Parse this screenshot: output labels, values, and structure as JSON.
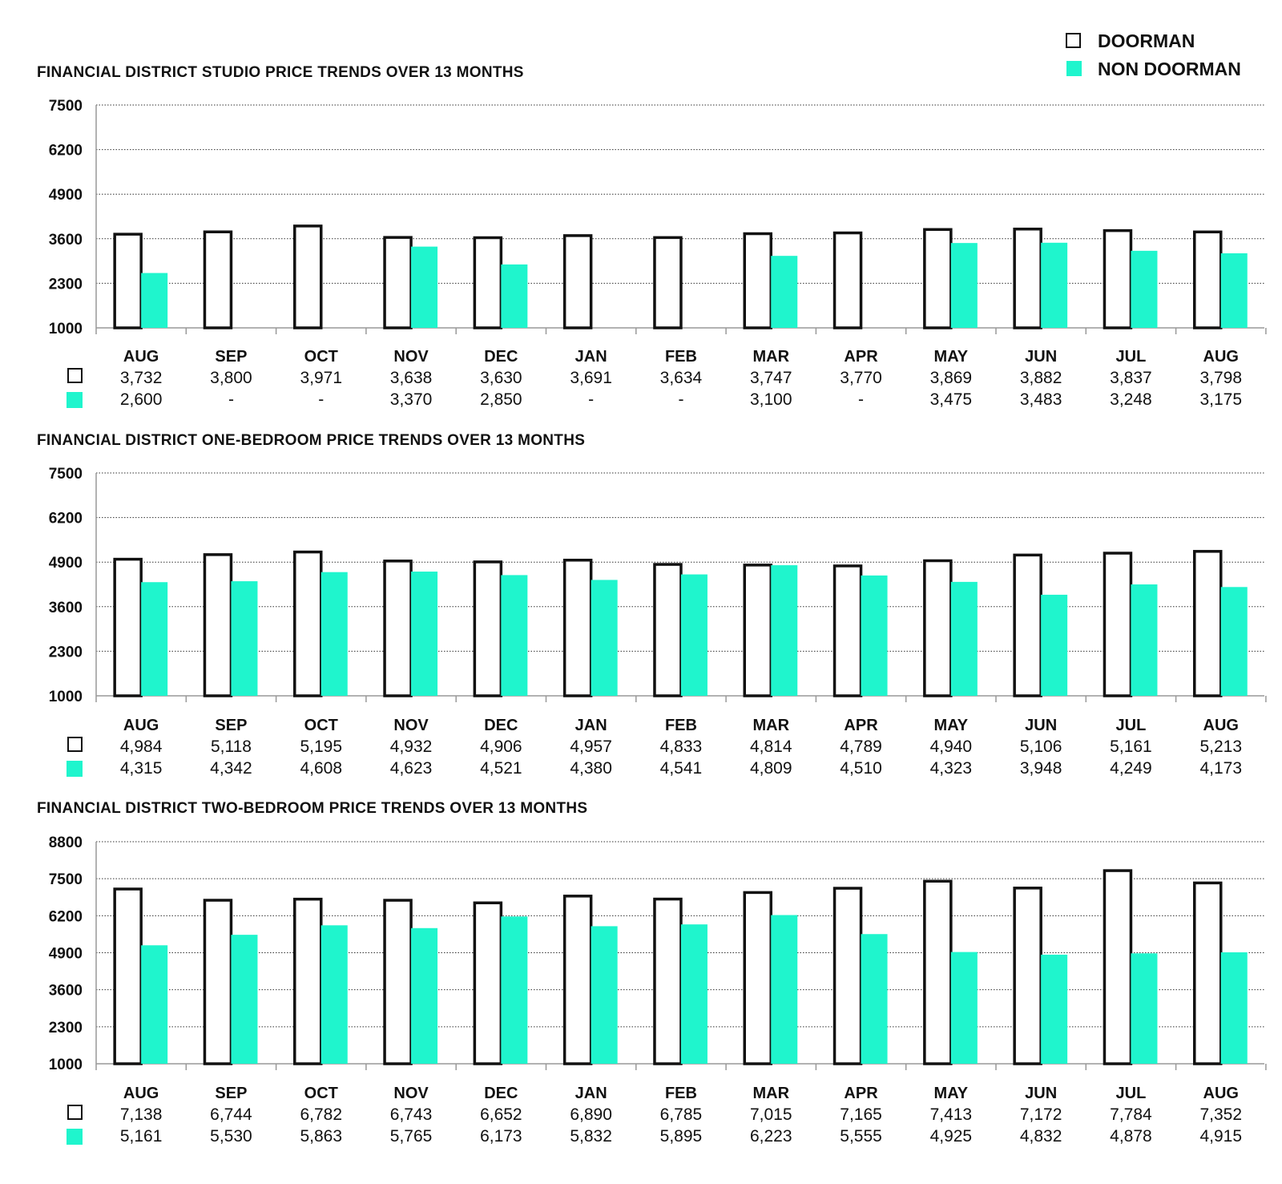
{
  "legend": {
    "items": [
      {
        "label": "DOORMAN",
        "swatch": "outline",
        "color": "#111111"
      },
      {
        "label": "NON DOORMAN",
        "swatch": "filled",
        "color": "#1ff5cd"
      }
    ]
  },
  "colors": {
    "doorman_stroke": "#111111",
    "non_doorman_fill": "#1ff5cd"
  },
  "chart_data": [
    {
      "type": "bar",
      "title": "FINANCIAL DISTRICT STUDIO PRICE TRENDS OVER 13 MONTHS",
      "categories": [
        "AUG",
        "SEP",
        "OCT",
        "NOV",
        "DEC",
        "JAN",
        "FEB",
        "MAR",
        "APR",
        "MAY",
        "JUN",
        "JUL",
        "AUG"
      ],
      "yticks": [
        1000,
        2300,
        3600,
        4900,
        6200,
        7500
      ],
      "ylim": [
        1000,
        7500
      ],
      "series": [
        {
          "name": "DOORMAN",
          "values": [
            3732,
            3800,
            3971,
            3638,
            3630,
            3691,
            3634,
            3747,
            3770,
            3869,
            3882,
            3837,
            3798
          ],
          "labels": [
            "3,732",
            "3,800",
            "3,971",
            "3,638",
            "3,630",
            "3,691",
            "3,634",
            "3,747",
            "3,770",
            "3,869",
            "3,882",
            "3,837",
            "3,798"
          ]
        },
        {
          "name": "NON DOORMAN",
          "values": [
            2600,
            null,
            null,
            3370,
            2850,
            null,
            null,
            3100,
            null,
            3475,
            3483,
            3248,
            3175
          ],
          "labels": [
            "2,600",
            "-",
            "-",
            "3,370",
            "2,850",
            "-",
            "-",
            "3,100",
            "-",
            "3,475",
            "3,483",
            "3,248",
            "3,175"
          ]
        }
      ]
    },
    {
      "type": "bar",
      "title": "FINANCIAL DISTRICT ONE-BEDROOM PRICE TRENDS OVER 13 MONTHS",
      "categories": [
        "AUG",
        "SEP",
        "OCT",
        "NOV",
        "DEC",
        "JAN",
        "FEB",
        "MAR",
        "APR",
        "MAY",
        "JUN",
        "JUL",
        "AUG"
      ],
      "yticks": [
        1000,
        2300,
        3600,
        4900,
        6200,
        7500
      ],
      "ylim": [
        1000,
        7500
      ],
      "series": [
        {
          "name": "DOORMAN",
          "values": [
            4984,
            5118,
            5195,
            4932,
            4906,
            4957,
            4833,
            4814,
            4789,
            4940,
            5106,
            5161,
            5213
          ],
          "labels": [
            "4,984",
            "5,118",
            "5,195",
            "4,932",
            "4,906",
            "4,957",
            "4,833",
            "4,814",
            "4,789",
            "4,940",
            "5,106",
            "5,161",
            "5,213"
          ]
        },
        {
          "name": "NON DOORMAN",
          "values": [
            4315,
            4342,
            4608,
            4623,
            4521,
            4380,
            4541,
            4809,
            4510,
            4323,
            3948,
            4249,
            4173
          ],
          "labels": [
            "4,315",
            "4,342",
            "4,608",
            "4,623",
            "4,521",
            "4,380",
            "4,541",
            "4,809",
            "4,510",
            "4,323",
            "3,948",
            "4,249",
            "4,173"
          ]
        }
      ]
    },
    {
      "type": "bar",
      "title": "FINANCIAL DISTRICT TWO-BEDROOM PRICE TRENDS OVER 13 MONTHS",
      "categories": [
        "AUG",
        "SEP",
        "OCT",
        "NOV",
        "DEC",
        "JAN",
        "FEB",
        "MAR",
        "APR",
        "MAY",
        "JUN",
        "JUL",
        "AUG"
      ],
      "yticks": [
        1000,
        2300,
        3600,
        4900,
        6200,
        7500,
        8800
      ],
      "ylim": [
        1000,
        8800
      ],
      "series": [
        {
          "name": "DOORMAN",
          "values": [
            7138,
            6744,
            6782,
            6743,
            6652,
            6890,
            6785,
            7015,
            7165,
            7413,
            7172,
            7784,
            7352
          ],
          "labels": [
            "7,138",
            "6,744",
            "6,782",
            "6,743",
            "6,652",
            "6,890",
            "6,785",
            "7,015",
            "7,165",
            "7,413",
            "7,172",
            "7,784",
            "7,352"
          ]
        },
        {
          "name": "NON DOORMAN",
          "values": [
            5161,
            5530,
            5863,
            5765,
            6173,
            5832,
            5895,
            6223,
            5555,
            4925,
            4832,
            4878,
            4915
          ],
          "labels": [
            "5,161",
            "5,530",
            "5,863",
            "5,765",
            "6,173",
            "5,832",
            "5,895",
            "6,223",
            "5,555",
            "4,925",
            "4,832",
            "4,878",
            "4,915"
          ]
        }
      ]
    }
  ]
}
